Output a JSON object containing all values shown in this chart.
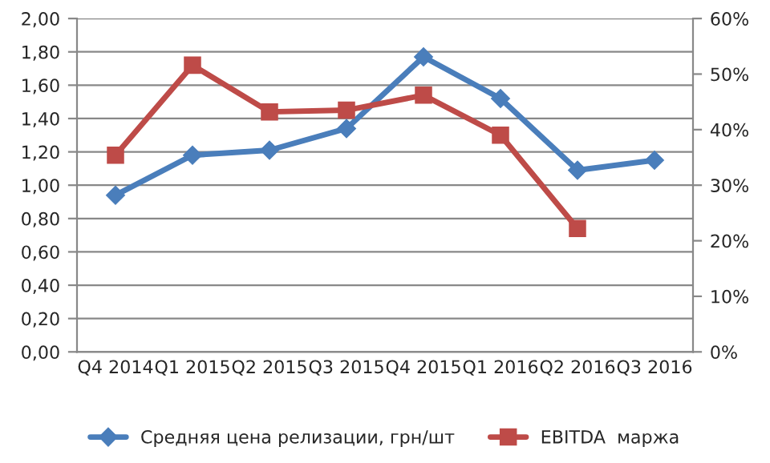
{
  "chart_data": {
    "type": "line",
    "categories": [
      "Q4 2014",
      "Q1 2015",
      "Q2 2015",
      "Q3 2015",
      "Q4 2015",
      "Q1 2016",
      "Q2 2016",
      "Q3 2016"
    ],
    "series": [
      {
        "name": "Средняя цена релизации, грн/шт",
        "color": "#4a7ebb",
        "marker": "diamond",
        "values": [
          0.94,
          1.18,
          1.21,
          1.34,
          1.77,
          1.52,
          1.09,
          1.15
        ]
      },
      {
        "name": "EBITDA  маржа",
        "color": "#be4b48",
        "marker": "square",
        "axis": "y2",
        "values": [
          35.4,
          51.6,
          43.2,
          43.5,
          46.2,
          39,
          22.2,
          null
        ]
      }
    ],
    "ylim": [
      0,
      2
    ],
    "yticks": [
      {
        "value": 0,
        "label": "0,00"
      },
      {
        "value": 0.2,
        "label": "0,20"
      },
      {
        "value": 0.4,
        "label": "0,40"
      },
      {
        "value": 0.6,
        "label": "0,60"
      },
      {
        "value": 0.8,
        "label": "0,80"
      },
      {
        "value": 1,
        "label": "1,00"
      },
      {
        "value": 1.2,
        "label": "1,20"
      },
      {
        "value": 1.4,
        "label": "1,40"
      },
      {
        "value": 1.6,
        "label": "1,60"
      },
      {
        "value": 1.8,
        "label": "1,80"
      },
      {
        "value": 2,
        "label": "2,00"
      }
    ],
    "y2lim": [
      0,
      60
    ],
    "y2ticks": [
      {
        "value": 0,
        "label": "0%"
      },
      {
        "value": 10,
        "label": "10%"
      },
      {
        "value": 20,
        "label": "20%"
      },
      {
        "value": 30,
        "label": "30%"
      },
      {
        "value": 40,
        "label": "40%"
      },
      {
        "value": 50,
        "label": "50%"
      },
      {
        "value": 60,
        "label": "60%"
      }
    ],
    "grid": "y",
    "legend": "bottom",
    "line_style": "solid"
  }
}
